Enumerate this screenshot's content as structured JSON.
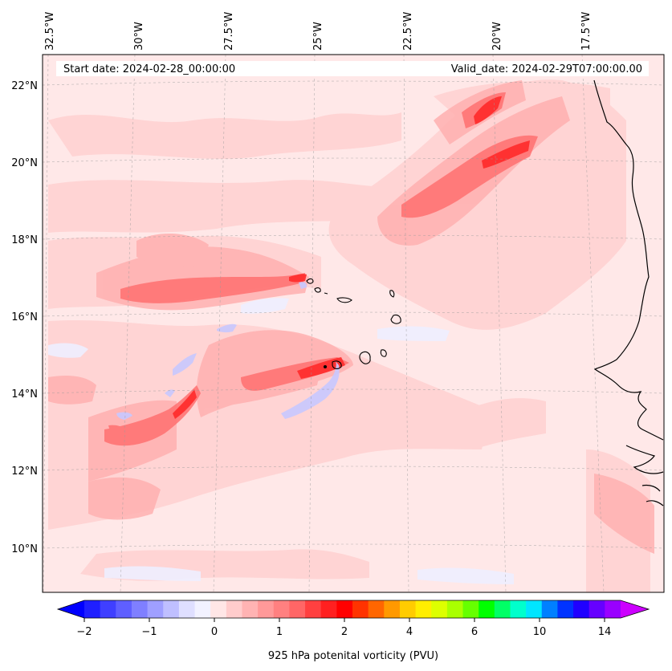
{
  "map": {
    "start_date_label": "Start date: 2024-02-28_00:00:00",
    "valid_date_label": "Valid_date: 2024-02-29T07:00:00.00",
    "lat_labels": [
      "22°N",
      "20°N",
      "18°N",
      "16°N",
      "14°N",
      "12°N",
      "10°N"
    ],
    "lon_labels": [
      "32.5°W",
      "30°W",
      "27.5°W",
      "25°W",
      "22.5°W",
      "20°W",
      "17.5°W"
    ],
    "background_color": "#ffe8e8"
  },
  "colorbar": {
    "title": "925 hPa potenital vorticity (PVU)",
    "tick_labels": [
      "−2",
      "−1",
      "0",
      "1",
      "2",
      "4",
      "6",
      "10",
      "14"
    ],
    "under_color": "#0000ff",
    "over_color": "#cc00ff",
    "colors": [
      "#1f1fff",
      "#3f3fff",
      "#5f5fff",
      "#7f7fff",
      "#9f9fff",
      "#bfbfff",
      "#dfdfff",
      "#f2f2ff",
      "#ffe6e6",
      "#ffcccc",
      "#ffb3b3",
      "#ff9999",
      "#ff8080",
      "#ff6666",
      "#ff4040",
      "#ff2020",
      "#ff0000",
      "#ff3300",
      "#ff6600",
      "#ff9900",
      "#ffcc00",
      "#ffee00",
      "#ddff00",
      "#aaff00",
      "#66ff00",
      "#00ff00",
      "#00ff66",
      "#00ffcc",
      "#00e5ff",
      "#0080ff",
      "#0033ff",
      "#2000ff",
      "#6600ff",
      "#9900ff"
    ]
  }
}
